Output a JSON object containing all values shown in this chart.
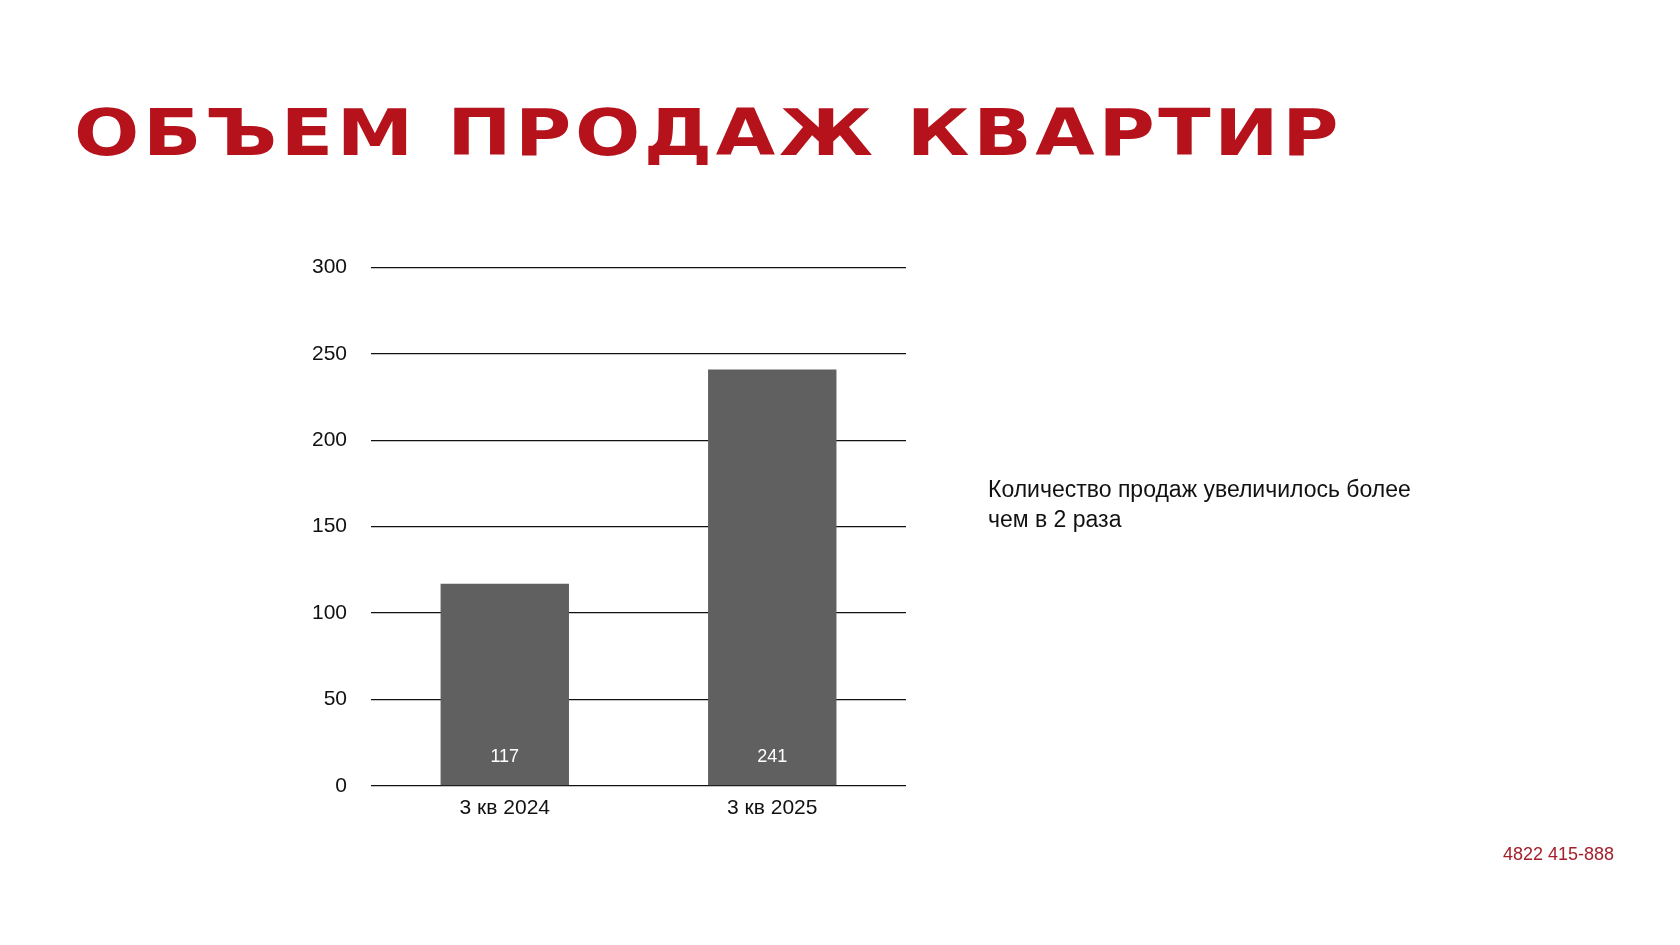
{
  "chart_data": {
    "type": "bar",
    "title": "ОБЪЕМ ПРОДАЖ КВАРТИР",
    "categories": [
      "3 кв 2024",
      "3 кв 2025"
    ],
    "values": [
      117,
      241
    ],
    "color": "#606060",
    "ylim": [
      0,
      300
    ],
    "yticks": [
      0,
      50,
      100,
      150,
      200,
      250,
      300
    ],
    "grid": "y",
    "data_labels": true,
    "legend": false,
    "annotations": [
      "Количество продаж увеличилось более чем в 2 раза",
      "4822 415-888"
    ]
  }
}
